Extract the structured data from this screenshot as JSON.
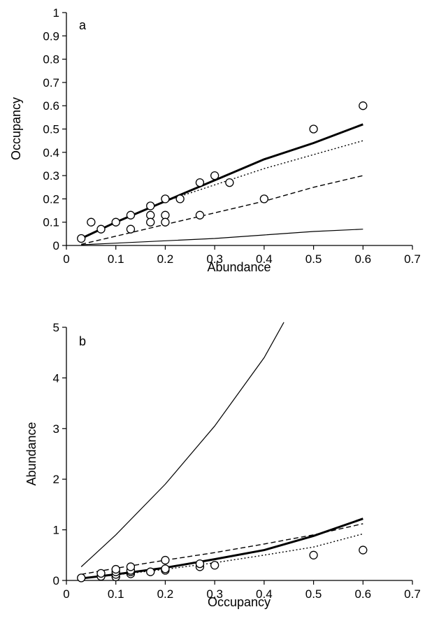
{
  "chart_data": [
    {
      "type": "scatter",
      "panel_label": "a",
      "xlabel": "Abundance",
      "ylabel": "Occupancy",
      "xlim": [
        0,
        0.7
      ],
      "ylim": [
        0,
        1
      ],
      "xticks": [
        "0",
        "0.1",
        "0.2",
        "0.3",
        "0.4",
        "0.5",
        "0.6",
        "0.7"
      ],
      "yticks": [
        "0",
        "0.1",
        "0.2",
        "0.3",
        "0.4",
        "0.5",
        "0.6",
        "0.7",
        "0.8",
        "0.9",
        "1"
      ],
      "grid": false,
      "points": [
        [
          0.03,
          0.03
        ],
        [
          0.05,
          0.1
        ],
        [
          0.07,
          0.07
        ],
        [
          0.1,
          0.1
        ],
        [
          0.13,
          0.13
        ],
        [
          0.13,
          0.07
        ],
        [
          0.17,
          0.17
        ],
        [
          0.17,
          0.13
        ],
        [
          0.17,
          0.1
        ],
        [
          0.2,
          0.2
        ],
        [
          0.2,
          0.13
        ],
        [
          0.2,
          0.1
        ],
        [
          0.23,
          0.2
        ],
        [
          0.27,
          0.27
        ],
        [
          0.27,
          0.13
        ],
        [
          0.3,
          0.3
        ],
        [
          0.33,
          0.27
        ],
        [
          0.4,
          0.2
        ],
        [
          0.5,
          0.5
        ],
        [
          0.6,
          0.6
        ]
      ],
      "series": [
        {
          "style": "thick-solid",
          "x": [
            0.03,
            0.1,
            0.2,
            0.3,
            0.4,
            0.5,
            0.6
          ],
          "y": [
            0.03,
            0.1,
            0.19,
            0.28,
            0.37,
            0.44,
            0.52
          ]
        },
        {
          "style": "dotted",
          "x": [
            0.03,
            0.1,
            0.2,
            0.3,
            0.4,
            0.5,
            0.6
          ],
          "y": [
            0.03,
            0.1,
            0.19,
            0.26,
            0.33,
            0.39,
            0.45
          ]
        },
        {
          "style": "dashed",
          "x": [
            0.03,
            0.1,
            0.2,
            0.3,
            0.4,
            0.5,
            0.6
          ],
          "y": [
            0.005,
            0.04,
            0.09,
            0.14,
            0.19,
            0.25,
            0.3
          ]
        },
        {
          "style": "thin-solid",
          "x": [
            0.03,
            0.1,
            0.2,
            0.3,
            0.4,
            0.5,
            0.6
          ],
          "y": [
            0.003,
            0.01,
            0.02,
            0.03,
            0.045,
            0.06,
            0.07
          ]
        }
      ]
    },
    {
      "type": "scatter",
      "panel_label": "b",
      "xlabel": "Occupancy",
      "ylabel": "Abundance",
      "xlim": [
        0,
        0.7
      ],
      "ylim": [
        0,
        5
      ],
      "xticks": [
        "0",
        "0.1",
        "0.2",
        "0.3",
        "0.4",
        "0.5",
        "0.6",
        "0.7"
      ],
      "yticks": [
        "0",
        "1",
        "2",
        "3",
        "4",
        "5"
      ],
      "grid": false,
      "points": [
        [
          0.03,
          0.05
        ],
        [
          0.07,
          0.08
        ],
        [
          0.07,
          0.14
        ],
        [
          0.1,
          0.07
        ],
        [
          0.1,
          0.12
        ],
        [
          0.1,
          0.17
        ],
        [
          0.1,
          0.22
        ],
        [
          0.13,
          0.13
        ],
        [
          0.13,
          0.17
        ],
        [
          0.13,
          0.2
        ],
        [
          0.13,
          0.27
        ],
        [
          0.17,
          0.17
        ],
        [
          0.2,
          0.2
        ],
        [
          0.2,
          0.23
        ],
        [
          0.2,
          0.4
        ],
        [
          0.27,
          0.27
        ],
        [
          0.27,
          0.33
        ],
        [
          0.3,
          0.3
        ],
        [
          0.5,
          0.5
        ],
        [
          0.6,
          0.6
        ]
      ],
      "series": [
        {
          "style": "thick-solid",
          "x": [
            0.03,
            0.1,
            0.2,
            0.3,
            0.4,
            0.5,
            0.6
          ],
          "y": [
            0.04,
            0.12,
            0.25,
            0.42,
            0.6,
            0.88,
            1.22
          ]
        },
        {
          "style": "dashed",
          "x": [
            0.03,
            0.1,
            0.2,
            0.3,
            0.4,
            0.5,
            0.6
          ],
          "y": [
            0.12,
            0.24,
            0.4,
            0.55,
            0.72,
            0.9,
            1.12
          ]
        },
        {
          "style": "dotted",
          "x": [
            0.03,
            0.1,
            0.2,
            0.3,
            0.4,
            0.5,
            0.6
          ],
          "y": [
            0.05,
            0.11,
            0.22,
            0.35,
            0.5,
            0.66,
            0.92
          ]
        },
        {
          "style": "thin-solid",
          "x": [
            0.03,
            0.1,
            0.2,
            0.3,
            0.4,
            0.44
          ],
          "y": [
            0.27,
            0.9,
            1.9,
            3.05,
            4.4,
            5.1
          ]
        }
      ]
    }
  ]
}
